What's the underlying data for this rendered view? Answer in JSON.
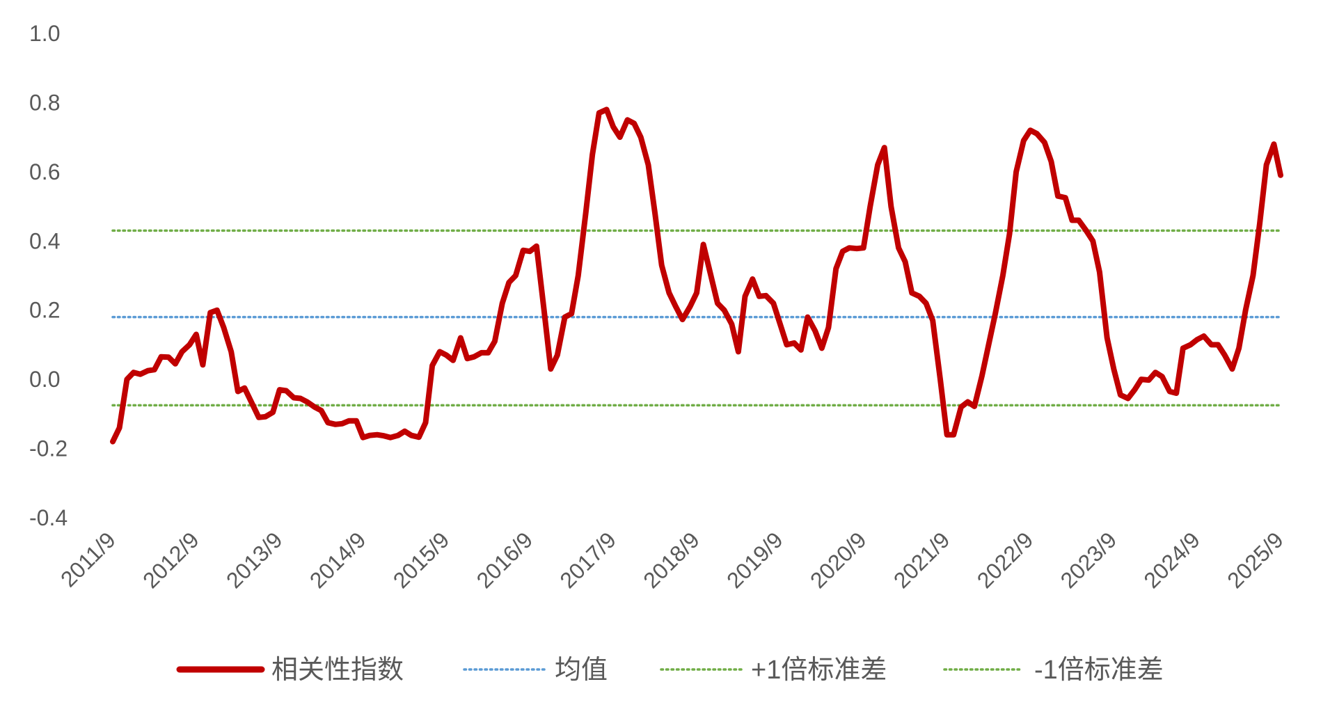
{
  "chart_data": {
    "type": "line",
    "title": "",
    "xlabel": "",
    "ylabel": "",
    "ylim": [
      -0.4,
      1.0
    ],
    "yticks": [
      "1.0",
      "0.8",
      "0.6",
      "0.4",
      "0.2",
      "0.0",
      "-0.2",
      "-0.4"
    ],
    "ytick_values": [
      1.0,
      0.8,
      0.6,
      0.4,
      0.2,
      0.0,
      -0.2,
      -0.4
    ],
    "xticks": [
      "2011/9",
      "2012/9",
      "2013/9",
      "2014/9",
      "2015/9",
      "2016/9",
      "2017/9",
      "2018/9",
      "2019/9",
      "2020/9",
      "2021/9",
      "2022/9",
      "2023/9",
      "2024/9",
      "2025/9"
    ],
    "x_range": [
      "2011/9",
      "2025/9"
    ],
    "grid": false,
    "legend_position": "bottom",
    "series": [
      {
        "name": "相关性指数",
        "style": "solid",
        "color": "#C00000",
        "points": [
          [
            0.0,
            -0.18
          ],
          [
            0.08,
            -0.14
          ],
          [
            0.17,
            0.0
          ],
          [
            0.25,
            0.02
          ],
          [
            0.33,
            0.015
          ],
          [
            0.42,
            0.025
          ],
          [
            0.5,
            0.028
          ],
          [
            0.58,
            0.065
          ],
          [
            0.67,
            0.064
          ],
          [
            0.75,
            0.045
          ],
          [
            0.83,
            0.08
          ],
          [
            0.92,
            0.1
          ],
          [
            1.0,
            0.13
          ],
          [
            1.08,
            0.042
          ],
          [
            1.17,
            0.193
          ],
          [
            1.25,
            0.2
          ],
          [
            1.33,
            0.15
          ],
          [
            1.42,
            0.08
          ],
          [
            1.5,
            -0.035
          ],
          [
            1.58,
            -0.025
          ],
          [
            1.67,
            -0.07
          ],
          [
            1.75,
            -0.11
          ],
          [
            1.83,
            -0.108
          ],
          [
            1.92,
            -0.095
          ],
          [
            2.0,
            -0.03
          ],
          [
            2.08,
            -0.033
          ],
          [
            2.17,
            -0.053
          ],
          [
            2.25,
            -0.055
          ],
          [
            2.33,
            -0.065
          ],
          [
            2.42,
            -0.08
          ],
          [
            2.5,
            -0.09
          ],
          [
            2.58,
            -0.125
          ],
          [
            2.67,
            -0.13
          ],
          [
            2.75,
            -0.128
          ],
          [
            2.83,
            -0.12
          ],
          [
            2.92,
            -0.12
          ],
          [
            3.0,
            -0.168
          ],
          [
            3.08,
            -0.162
          ],
          [
            3.17,
            -0.16
          ],
          [
            3.25,
            -0.163
          ],
          [
            3.33,
            -0.168
          ],
          [
            3.42,
            -0.162
          ],
          [
            3.5,
            -0.15
          ],
          [
            3.58,
            -0.162
          ],
          [
            3.67,
            -0.167
          ],
          [
            3.75,
            -0.125
          ],
          [
            3.83,
            0.04
          ],
          [
            3.92,
            0.08
          ],
          [
            4.0,
            0.07
          ],
          [
            4.08,
            0.055
          ],
          [
            4.17,
            0.12
          ],
          [
            4.25,
            0.06
          ],
          [
            4.33,
            0.065
          ],
          [
            4.42,
            0.077
          ],
          [
            4.5,
            0.077
          ],
          [
            4.58,
            0.11
          ],
          [
            4.67,
            0.22
          ],
          [
            4.75,
            0.28
          ],
          [
            4.83,
            0.3
          ],
          [
            4.92,
            0.373
          ],
          [
            5.0,
            0.37
          ],
          [
            5.08,
            0.385
          ],
          [
            5.17,
            0.2
          ],
          [
            5.25,
            0.03
          ],
          [
            5.33,
            0.07
          ],
          [
            5.42,
            0.18
          ],
          [
            5.5,
            0.19
          ],
          [
            5.58,
            0.3
          ],
          [
            5.67,
            0.48
          ],
          [
            5.75,
            0.65
          ],
          [
            5.83,
            0.77
          ],
          [
            5.92,
            0.78
          ],
          [
            6.0,
            0.73
          ],
          [
            6.08,
            0.7
          ],
          [
            6.17,
            0.75
          ],
          [
            6.25,
            0.74
          ],
          [
            6.33,
            0.7
          ],
          [
            6.42,
            0.62
          ],
          [
            6.5,
            0.48
          ],
          [
            6.58,
            0.33
          ],
          [
            6.67,
            0.25
          ],
          [
            6.75,
            0.21
          ],
          [
            6.83,
            0.173
          ],
          [
            6.92,
            0.21
          ],
          [
            7.0,
            0.25
          ],
          [
            7.08,
            0.39
          ],
          [
            7.17,
            0.3
          ],
          [
            7.25,
            0.22
          ],
          [
            7.33,
            0.2
          ],
          [
            7.42,
            0.16
          ],
          [
            7.5,
            0.08
          ],
          [
            7.58,
            0.24
          ],
          [
            7.67,
            0.29
          ],
          [
            7.75,
            0.24
          ],
          [
            7.83,
            0.242
          ],
          [
            7.92,
            0.22
          ],
          [
            8.0,
            0.16
          ],
          [
            8.08,
            0.1
          ],
          [
            8.17,
            0.105
          ],
          [
            8.25,
            0.085
          ],
          [
            8.33,
            0.18
          ],
          [
            8.42,
            0.14
          ],
          [
            8.5,
            0.09
          ],
          [
            8.58,
            0.15
          ],
          [
            8.67,
            0.32
          ],
          [
            8.75,
            0.37
          ],
          [
            8.83,
            0.38
          ],
          [
            8.92,
            0.378
          ],
          [
            9.0,
            0.38
          ],
          [
            9.08,
            0.5
          ],
          [
            9.17,
            0.62
          ],
          [
            9.25,
            0.67
          ],
          [
            9.33,
            0.5
          ],
          [
            9.42,
            0.38
          ],
          [
            9.5,
            0.34
          ],
          [
            9.58,
            0.25
          ],
          [
            9.67,
            0.24
          ],
          [
            9.75,
            0.22
          ],
          [
            9.83,
            0.17
          ],
          [
            9.92,
            0.0
          ],
          [
            10.0,
            -0.16
          ],
          [
            10.08,
            -0.16
          ],
          [
            10.17,
            -0.08
          ],
          [
            10.25,
            -0.065
          ],
          [
            10.33,
            -0.078
          ],
          [
            10.42,
            0.01
          ],
          [
            10.5,
            0.1
          ],
          [
            10.58,
            0.19
          ],
          [
            10.67,
            0.3
          ],
          [
            10.75,
            0.42
          ],
          [
            10.83,
            0.6
          ],
          [
            10.92,
            0.69
          ],
          [
            11.0,
            0.72
          ],
          [
            11.08,
            0.71
          ],
          [
            11.17,
            0.685
          ],
          [
            11.25,
            0.63
          ],
          [
            11.33,
            0.53
          ],
          [
            11.42,
            0.525
          ],
          [
            11.5,
            0.46
          ],
          [
            11.58,
            0.46
          ],
          [
            11.67,
            0.43
          ],
          [
            11.75,
            0.4
          ],
          [
            11.83,
            0.31
          ],
          [
            11.92,
            0.12
          ],
          [
            12.0,
            0.03
          ],
          [
            12.08,
            -0.045
          ],
          [
            12.17,
            -0.055
          ],
          [
            12.25,
            -0.03
          ],
          [
            12.33,
            0.0
          ],
          [
            12.42,
            -0.002
          ],
          [
            12.5,
            0.02
          ],
          [
            12.58,
            0.008
          ],
          [
            12.67,
            -0.035
          ],
          [
            12.75,
            -0.04
          ],
          [
            12.83,
            0.09
          ],
          [
            12.92,
            0.1
          ],
          [
            13.0,
            0.115
          ],
          [
            13.08,
            0.125
          ],
          [
            13.17,
            0.1
          ],
          [
            13.25,
            0.1
          ],
          [
            13.33,
            0.07
          ],
          [
            13.42,
            0.03
          ],
          [
            13.5,
            0.09
          ],
          [
            13.58,
            0.2
          ],
          [
            13.67,
            0.3
          ],
          [
            13.75,
            0.45
          ],
          [
            13.83,
            0.62
          ],
          [
            13.92,
            0.68
          ],
          [
            14.0,
            0.59
          ]
        ]
      },
      {
        "name": "均值",
        "style": "dotted",
        "color": "#5B9BD5",
        "constant": 0.18
      },
      {
        "name": "+1倍标准差",
        "style": "dotted",
        "color": "#70AD47",
        "constant": 0.43
      },
      {
        "name": "-1倍标准差",
        "style": "dotted",
        "color": "#70AD47",
        "constant": -0.075
      }
    ]
  }
}
